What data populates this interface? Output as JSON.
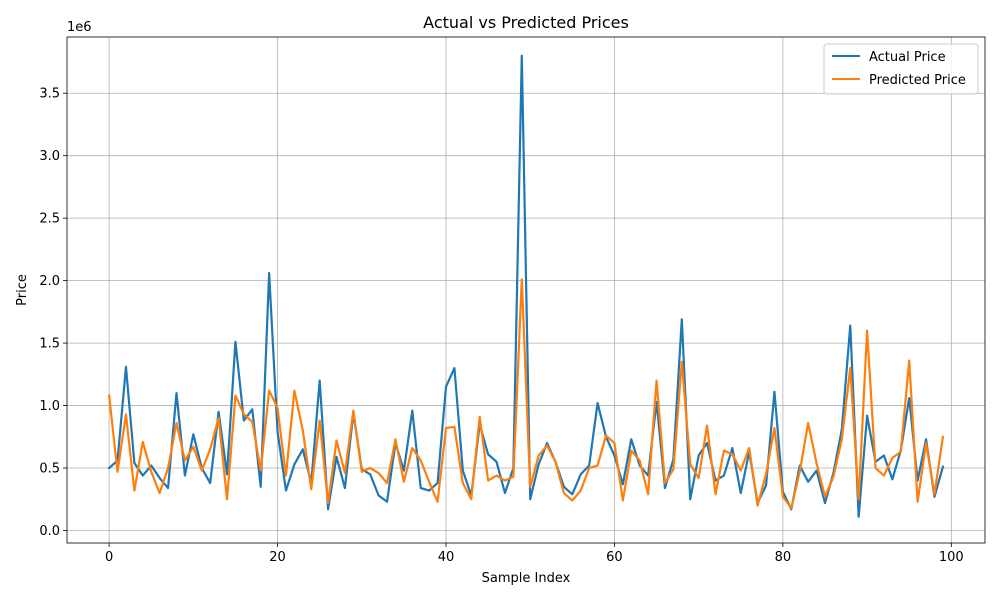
{
  "chart_data": {
    "type": "line",
    "title": "Actual vs Predicted Prices",
    "xlabel": "Sample Index",
    "ylabel": "Price",
    "y_scale_label": "1e6",
    "y_scale": 1000000,
    "xlim": [
      -5,
      104
    ],
    "ylim": [
      -0.1,
      3.95
    ],
    "x_ticks": [
      0,
      20,
      40,
      60,
      80,
      100
    ],
    "x_tick_labels": [
      "0",
      "20",
      "40",
      "60",
      "80",
      "100"
    ],
    "y_ticks": [
      0.0,
      0.5,
      1.0,
      1.5,
      2.0,
      2.5,
      3.0,
      3.5
    ],
    "y_tick_labels": [
      "0.0",
      "0.5",
      "1.0",
      "1.5",
      "2.0",
      "2.5",
      "3.0",
      "3.5"
    ],
    "grid": true,
    "legend_position": "top-right",
    "x": [
      0,
      1,
      2,
      3,
      4,
      5,
      6,
      7,
      8,
      9,
      10,
      11,
      12,
      13,
      14,
      15,
      16,
      17,
      18,
      19,
      20,
      21,
      22,
      23,
      24,
      25,
      26,
      27,
      28,
      29,
      30,
      31,
      32,
      33,
      34,
      35,
      36,
      37,
      38,
      39,
      40,
      41,
      42,
      43,
      44,
      45,
      46,
      47,
      48,
      49,
      50,
      51,
      52,
      53,
      54,
      55,
      56,
      57,
      58,
      59,
      60,
      61,
      62,
      63,
      64,
      65,
      66,
      67,
      68,
      69,
      70,
      71,
      72,
      73,
      74,
      75,
      76,
      77,
      78,
      79,
      80,
      81,
      82,
      83,
      84,
      85,
      86,
      87,
      88,
      89,
      90,
      91,
      92,
      93,
      94,
      95,
      96,
      97,
      98,
      99
    ],
    "series": [
      {
        "name": "Actual Price",
        "color": "#1f77b4",
        "values": [
          0.5,
          0.56,
          1.31,
          0.54,
          0.44,
          0.52,
          0.42,
          0.34,
          1.1,
          0.44,
          0.77,
          0.5,
          0.38,
          0.95,
          0.45,
          1.51,
          0.88,
          0.97,
          0.35,
          2.06,
          0.79,
          0.32,
          0.53,
          0.65,
          0.38,
          1.2,
          0.17,
          0.59,
          0.34,
          0.94,
          0.49,
          0.45,
          0.28,
          0.23,
          0.7,
          0.48,
          0.96,
          0.34,
          0.32,
          0.38,
          1.15,
          1.3,
          0.48,
          0.28,
          0.85,
          0.61,
          0.55,
          0.3,
          0.5,
          3.8,
          0.25,
          0.53,
          0.7,
          0.55,
          0.35,
          0.29,
          0.45,
          0.52,
          1.02,
          0.75,
          0.6,
          0.37,
          0.73,
          0.52,
          0.44,
          1.03,
          0.34,
          0.57,
          1.69,
          0.25,
          0.6,
          0.7,
          0.4,
          0.44,
          0.66,
          0.3,
          0.63,
          0.22,
          0.36,
          1.11,
          0.31,
          0.17,
          0.52,
          0.39,
          0.48,
          0.22,
          0.46,
          0.81,
          1.64,
          0.11,
          0.92,
          0.55,
          0.6,
          0.41,
          0.64,
          1.06,
          0.4,
          0.73,
          0.27,
          0.51
        ]
      },
      {
        "name": "Predicted Price",
        "color": "#ff7f0e",
        "values": [
          1.08,
          0.47,
          0.93,
          0.32,
          0.71,
          0.47,
          0.3,
          0.5,
          0.86,
          0.56,
          0.67,
          0.48,
          0.65,
          0.9,
          0.25,
          1.08,
          0.93,
          0.87,
          0.48,
          1.12,
          0.98,
          0.44,
          1.12,
          0.8,
          0.33,
          0.88,
          0.22,
          0.72,
          0.46,
          0.96,
          0.47,
          0.5,
          0.46,
          0.38,
          0.73,
          0.39,
          0.66,
          0.56,
          0.39,
          0.23,
          0.82,
          0.83,
          0.38,
          0.25,
          0.91,
          0.4,
          0.44,
          0.4,
          0.43,
          2.01,
          0.35,
          0.6,
          0.68,
          0.55,
          0.3,
          0.24,
          0.32,
          0.5,
          0.52,
          0.76,
          0.7,
          0.24,
          0.64,
          0.56,
          0.29,
          1.2,
          0.38,
          0.49,
          1.35,
          0.53,
          0.42,
          0.84,
          0.29,
          0.64,
          0.61,
          0.48,
          0.66,
          0.2,
          0.45,
          0.82,
          0.27,
          0.18,
          0.47,
          0.86,
          0.54,
          0.27,
          0.43,
          0.73,
          1.3,
          0.25,
          1.6,
          0.5,
          0.44,
          0.58,
          0.63,
          1.36,
          0.23,
          0.7,
          0.29,
          0.75
        ]
      }
    ]
  }
}
